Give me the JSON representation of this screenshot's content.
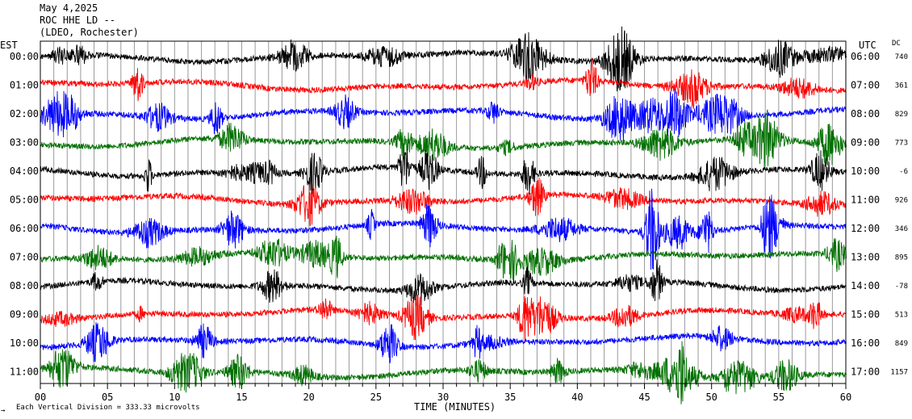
{
  "header": {
    "date": "May 4,2025",
    "station": "ROC HHE LD --",
    "network": "(LDEO, Rochester)"
  },
  "chart_data": {
    "type": "line",
    "title": "",
    "xlabel": "TIME (MINUTES)",
    "left_label": "EST",
    "right_label": "UTC",
    "dc_label": "DC",
    "xlim": [
      0,
      60
    ],
    "x_ticks": [
      "00",
      "05",
      "10",
      "15",
      "20",
      "25",
      "30",
      "35",
      "40",
      "45",
      "50",
      "55",
      "60"
    ],
    "footer_note": "Each Vertical Division =  333.33 microvolts",
    "corner_mark": "→",
    "grid": "vertical every minute",
    "trace_colors": [
      "#000000",
      "#ff0000",
      "#0000ff",
      "#007000"
    ],
    "rows": [
      {
        "est": "00:00",
        "utc": "06:00",
        "dc": "740"
      },
      {
        "est": "01:00",
        "utc": "07:00",
        "dc": "361"
      },
      {
        "est": "02:00",
        "utc": "08:00",
        "dc": "829"
      },
      {
        "est": "03:00",
        "utc": "09:00",
        "dc": "773"
      },
      {
        "est": "04:00",
        "utc": "10:00",
        "dc": "-6"
      },
      {
        "est": "05:00",
        "utc": "11:00",
        "dc": "926"
      },
      {
        "est": "06:00",
        "utc": "12:00",
        "dc": "346"
      },
      {
        "est": "07:00",
        "utc": "13:00",
        "dc": "895"
      },
      {
        "est": "08:00",
        "utc": "14:00",
        "dc": "-78"
      },
      {
        "est": "09:00",
        "utc": "15:00",
        "dc": "513"
      },
      {
        "est": "10:00",
        "utc": "16:00",
        "dc": "849"
      },
      {
        "est": "11:00",
        "utc": "17:00",
        "dc": "1157"
      }
    ]
  }
}
